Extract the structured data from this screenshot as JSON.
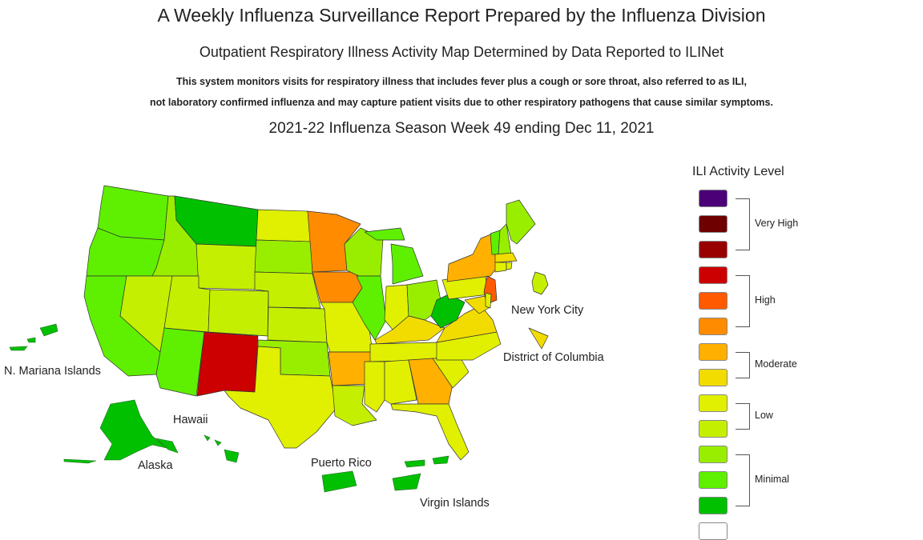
{
  "header": {
    "title": "A Weekly Influenza Surveillance Report Prepared by the Influenza Division",
    "subtitle": "Outpatient Respiratory Illness Activity Map Determined by Data Reported to ILINet",
    "description_line1": "This system monitors visits for respiratory illness that includes fever plus a cough or sore throat, also referred to as ILI,",
    "description_line2": "not laboratory confirmed influenza and may capture patient visits due to other respiratory pathogens that cause similar symptoms.",
    "season_week": "2021-22 Influenza Season Week 49 ending Dec 11, 2021"
  },
  "map": {
    "labels": {
      "nmi": "N. Mariana Islands",
      "hawaii": "Hawaii",
      "alaska": "Alaska",
      "puerto_rico": "Puerto Rico",
      "virgin_islands": "Virgin Islands",
      "nyc": "New York City",
      "dc": "District of Columbia"
    },
    "activity_colors": {
      "very_high_1": "#4b0078",
      "very_high_2": "#6e0000",
      "very_high_3": "#990000",
      "high_1": "#cc0000",
      "high_2": "#ff5a00",
      "high_3": "#ff8c00",
      "moderate_1": "#ffb000",
      "moderate_2": "#f2dc00",
      "low_1": "#e0f000",
      "low_2": "#c5ef00",
      "minimal_1": "#99ee00",
      "minimal_2": "#5ef000",
      "minimal_3": "#00c000",
      "insufficient": "#ffffff"
    }
  },
  "legend": {
    "title": "ILI Activity Level",
    "groups": [
      "Very High",
      "High",
      "Moderate",
      "Low",
      "Minimal"
    ]
  }
}
